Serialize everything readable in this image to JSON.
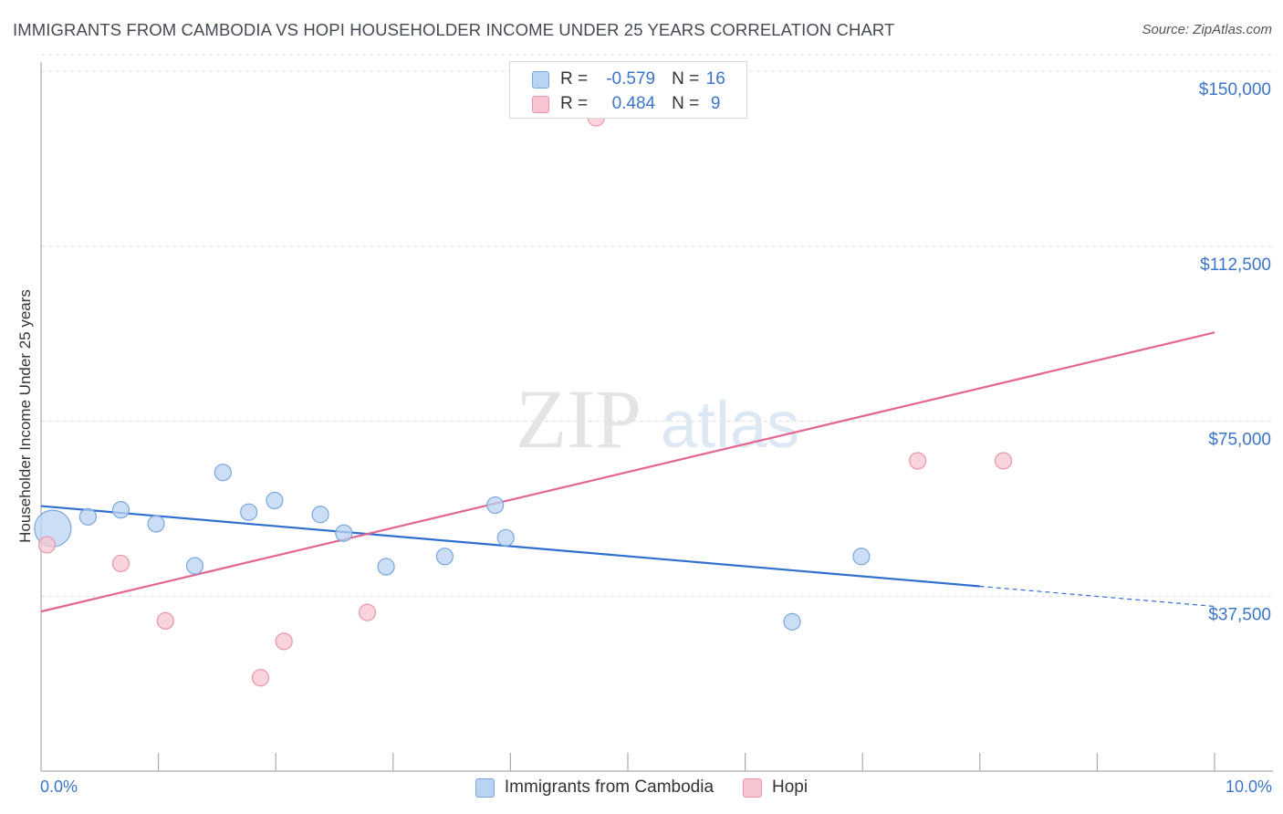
{
  "header": {
    "title": "IMMIGRANTS FROM CAMBODIA VS HOPI HOUSEHOLDER INCOME UNDER 25 YEARS CORRELATION CHART",
    "source": "Source: ZipAtlas.com"
  },
  "watermark": {
    "zip": "ZIP",
    "atlas": "atlas"
  },
  "legend": {
    "r_label": "R =",
    "n_label": "N =",
    "rows": [
      {
        "name": "Immigrants from Cambodia",
        "r": "-0.579",
        "n": "16"
      },
      {
        "name": "Hopi",
        "r": "0.484",
        "n": "9"
      }
    ]
  },
  "colors": {
    "blue_fill": "#b9d3f2",
    "blue_stroke": "#7aa6de",
    "blue_line": "#2f6fcf",
    "pink_fill": "#f7c5d2",
    "pink_stroke": "#e996ad",
    "pink_line": "#e36592",
    "axis_text": "#3b74c9",
    "grid": "#dcdcdc"
  },
  "chart_data": {
    "type": "scatter",
    "title": "IMMIGRANTS FROM CAMBODIA VS HOPI HOUSEHOLDER INCOME UNDER 25 YEARS CORRELATION CHART",
    "xlabel": "",
    "ylabel": "Householder Income Under 25 years",
    "xlim": [
      0,
      10
    ],
    "ylim": [
      0,
      155000
    ],
    "x_tick_labels": [
      "0.0%",
      "10.0%"
    ],
    "y_ticks": [
      37500,
      75000,
      112500,
      150000
    ],
    "y_tick_labels": [
      "$37,500",
      "$75,000",
      "$112,500",
      "$150,000"
    ],
    "series": [
      {
        "name": "Immigrants from Cambodia",
        "points": [
          {
            "x": 0.1,
            "y": 52000,
            "size": "large"
          },
          {
            "x": 0.4,
            "y": 54500
          },
          {
            "x": 0.68,
            "y": 56000
          },
          {
            "x": 0.98,
            "y": 53000
          },
          {
            "x": 1.31,
            "y": 44000
          },
          {
            "x": 1.55,
            "y": 64000
          },
          {
            "x": 1.77,
            "y": 55500
          },
          {
            "x": 1.99,
            "y": 58000
          },
          {
            "x": 2.38,
            "y": 55000
          },
          {
            "x": 2.58,
            "y": 51000
          },
          {
            "x": 2.94,
            "y": 43800
          },
          {
            "x": 3.44,
            "y": 46000
          },
          {
            "x": 3.87,
            "y": 57000
          },
          {
            "x": 3.96,
            "y": 50000
          },
          {
            "x": 6.4,
            "y": 32000
          },
          {
            "x": 6.99,
            "y": 46000
          }
        ],
        "trend": {
          "x0": 0.0,
          "y0": 56800,
          "x1": 8.0,
          "y1": 39600,
          "dashed_to_x": 10.0,
          "dashed_to_y": 35300
        }
      },
      {
        "name": "Hopi",
        "points": [
          {
            "x": 0.05,
            "y": 48500
          },
          {
            "x": 0.68,
            "y": 44500
          },
          {
            "x": 1.06,
            "y": 32200
          },
          {
            "x": 1.87,
            "y": 20000
          },
          {
            "x": 2.07,
            "y": 27800
          },
          {
            "x": 2.78,
            "y": 34000
          },
          {
            "x": 4.73,
            "y": 140000
          },
          {
            "x": 7.47,
            "y": 66500
          },
          {
            "x": 8.2,
            "y": 66500
          }
        ],
        "trend": {
          "x0": 0.0,
          "y0": 34200,
          "x1": 10.0,
          "y1": 94000
        }
      }
    ]
  }
}
